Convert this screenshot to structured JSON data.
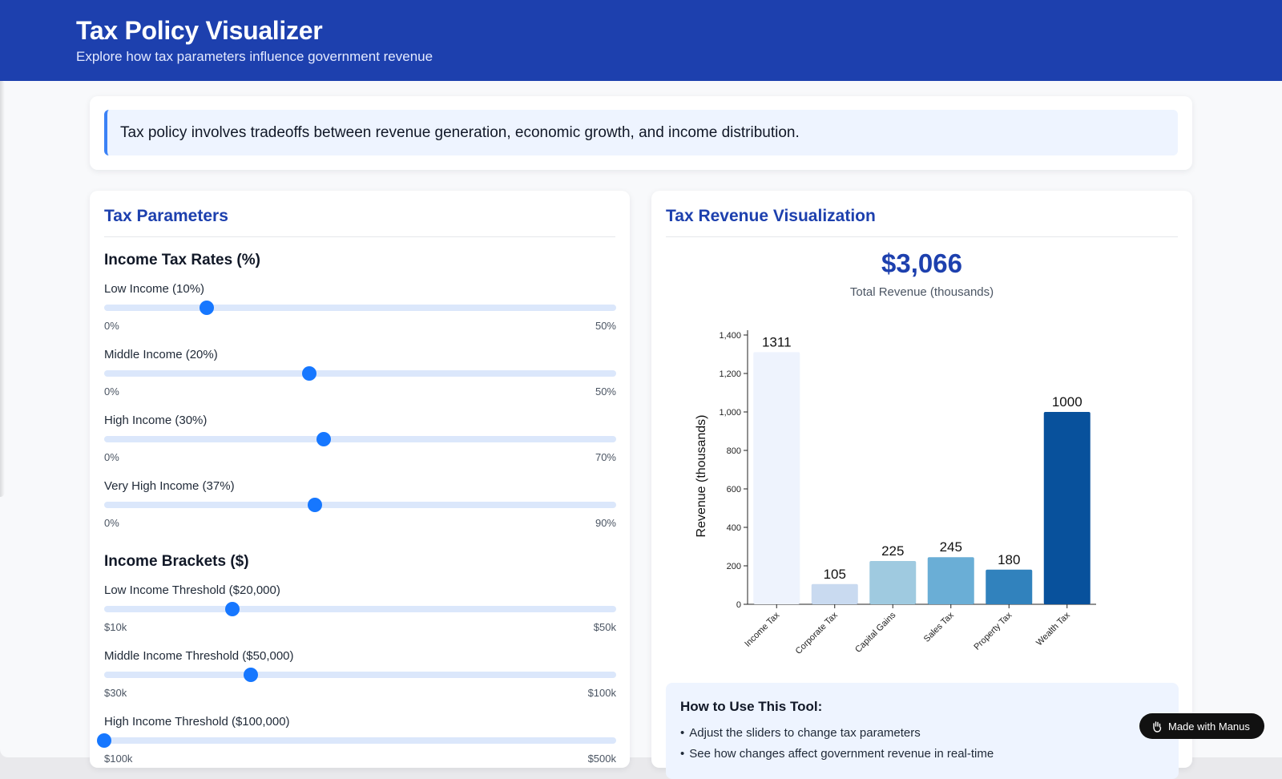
{
  "header": {
    "title": "Tax Policy Visualizer",
    "subtitle": "Explore how tax parameters influence government revenue"
  },
  "intro": {
    "text": "Tax policy involves tradeoffs between revenue generation, economic growth, and income distribution."
  },
  "params": {
    "title": "Tax Parameters",
    "rates_title": "Income Tax Rates (%)",
    "rates": [
      {
        "label": "Low Income (10%)",
        "value": 10,
        "min": 0,
        "max": 50,
        "min_label": "0%",
        "max_label": "50%"
      },
      {
        "label": "Middle Income (20%)",
        "value": 20,
        "min": 0,
        "max": 50,
        "min_label": "0%",
        "max_label": "50%"
      },
      {
        "label": "High Income (30%)",
        "value": 30,
        "min": 0,
        "max": 70,
        "min_label": "0%",
        "max_label": "70%"
      },
      {
        "label": "Very High Income (37%)",
        "value": 37,
        "min": 0,
        "max": 90,
        "min_label": "0%",
        "max_label": "90%"
      }
    ],
    "brackets_title": "Income Brackets ($)",
    "brackets": [
      {
        "label": "Low Income Threshold ($20,000)",
        "value": 20000,
        "min": 10000,
        "max": 50000,
        "min_label": "$10k",
        "max_label": "$50k"
      },
      {
        "label": "Middle Income Threshold ($50,000)",
        "value": 50000,
        "min": 30000,
        "max": 100000,
        "min_label": "$30k",
        "max_label": "$100k"
      },
      {
        "label": "High Income Threshold ($100,000)",
        "value": 100000,
        "min": 100000,
        "max": 500000,
        "min_label": "$100k",
        "max_label": "$500k"
      }
    ]
  },
  "viz": {
    "title": "Tax Revenue Visualization",
    "total": "$3,066",
    "total_label": "Total Revenue (thousands)"
  },
  "chart_data": {
    "type": "bar",
    "categories": [
      "Income Tax",
      "Corporate Tax",
      "Capital Gains",
      "Sales Tax",
      "Property Tax",
      "Wealth Tax"
    ],
    "values": [
      1311,
      105,
      225,
      245,
      180,
      1000
    ],
    "bar_colors": [
      "#eef3fd",
      "#c9daf0",
      "#9fcae0",
      "#6aaed6",
      "#3182bd",
      "#08519c"
    ],
    "ylabel": "Revenue (thousands)",
    "xlabel": "",
    "title": "",
    "ylim": [
      0,
      1400
    ],
    "yticks": [
      0,
      200,
      400,
      600,
      800,
      1000,
      1200,
      1400
    ],
    "ytick_labels": [
      "0",
      "200",
      "400",
      "600",
      "800",
      "1,000",
      "1,200",
      "1,400"
    ],
    "grid": false,
    "legend": "none"
  },
  "howto": {
    "title": "How to Use This Tool:",
    "items": [
      "Adjust the sliders to change tax parameters",
      "See how changes affect government revenue in real-time"
    ]
  },
  "badge": {
    "label": "Made with Manus",
    "icon": "manus-hand-icon"
  },
  "colors": {
    "header_bg": "#1d40ae",
    "accent": "#1677ff",
    "title_blue": "#1d40ae"
  }
}
